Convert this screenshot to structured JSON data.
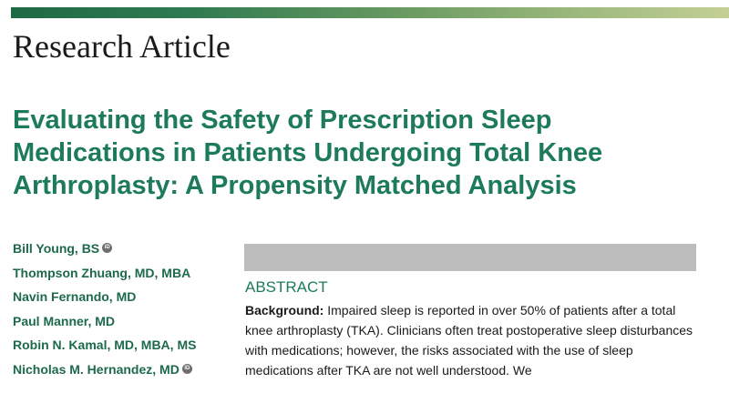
{
  "header": {
    "section_label": "Research Article"
  },
  "article": {
    "title": "Evaluating the Safety of Prescription Sleep Medications in Patients Undergoing Total Knee Arthroplasty: A Propensity Matched Analysis"
  },
  "authors": [
    {
      "name": "Bill Young, BS",
      "orcid": true
    },
    {
      "name": "Thompson Zhuang, MD, MBA",
      "orcid": false
    },
    {
      "name": "Navin Fernando, MD",
      "orcid": false
    },
    {
      "name": "Paul Manner, MD",
      "orcid": false
    },
    {
      "name": "Robin N. Kamal, MD, MBA, MS",
      "orcid": false
    },
    {
      "name": "Nicholas M. Hernandez, MD",
      "orcid": true
    }
  ],
  "orcid_label": "iD",
  "abstract": {
    "heading": "ABSTRACT",
    "background_label": "Background:",
    "background_text": " Impaired sleep is reported in over 50% of patients after a total knee arthroplasty (TKA). Clinicians often treat postoperative sleep disturbances with medications; however, the risks associated with the use of sleep medications after TKA are not well understood. We"
  },
  "colors": {
    "accent_green": "#1d7a5c",
    "author_green": "#1d6a4b",
    "abstract_box_gray": "#bdbdbd"
  }
}
